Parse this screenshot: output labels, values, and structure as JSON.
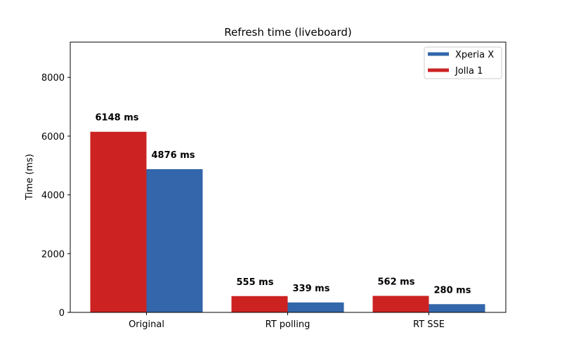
{
  "chart_data": {
    "type": "bar",
    "title": "Refresh time (liveboard)",
    "xlabel": "",
    "ylabel": "Time (ms)",
    "ylim": [
      0,
      9200
    ],
    "yticks": [
      0,
      2000,
      4000,
      6000,
      8000
    ],
    "ytick_labels": [
      "0",
      "2000",
      "4000",
      "6000",
      "8000"
    ],
    "categories": [
      "Original",
      "RT polling",
      "RT SSE"
    ],
    "series": [
      {
        "name": "Jolla 1",
        "color": "#cc2222",
        "values": [
          6148,
          555,
          562
        ],
        "labels": [
          "6148 ms",
          "555 ms",
          "562 ms"
        ]
      },
      {
        "name": "Xperia X",
        "color": "#3366aa",
        "values": [
          4876,
          339,
          280
        ],
        "labels": [
          "4876 ms",
          "339 ms",
          "280 ms"
        ]
      }
    ],
    "legend": {
      "placement": "top-right",
      "entries": [
        {
          "name": "Xperia X",
          "color": "#3366aa"
        },
        {
          "name": "Jolla 1",
          "color": "#cc2222"
        }
      ]
    },
    "grid": false
  }
}
